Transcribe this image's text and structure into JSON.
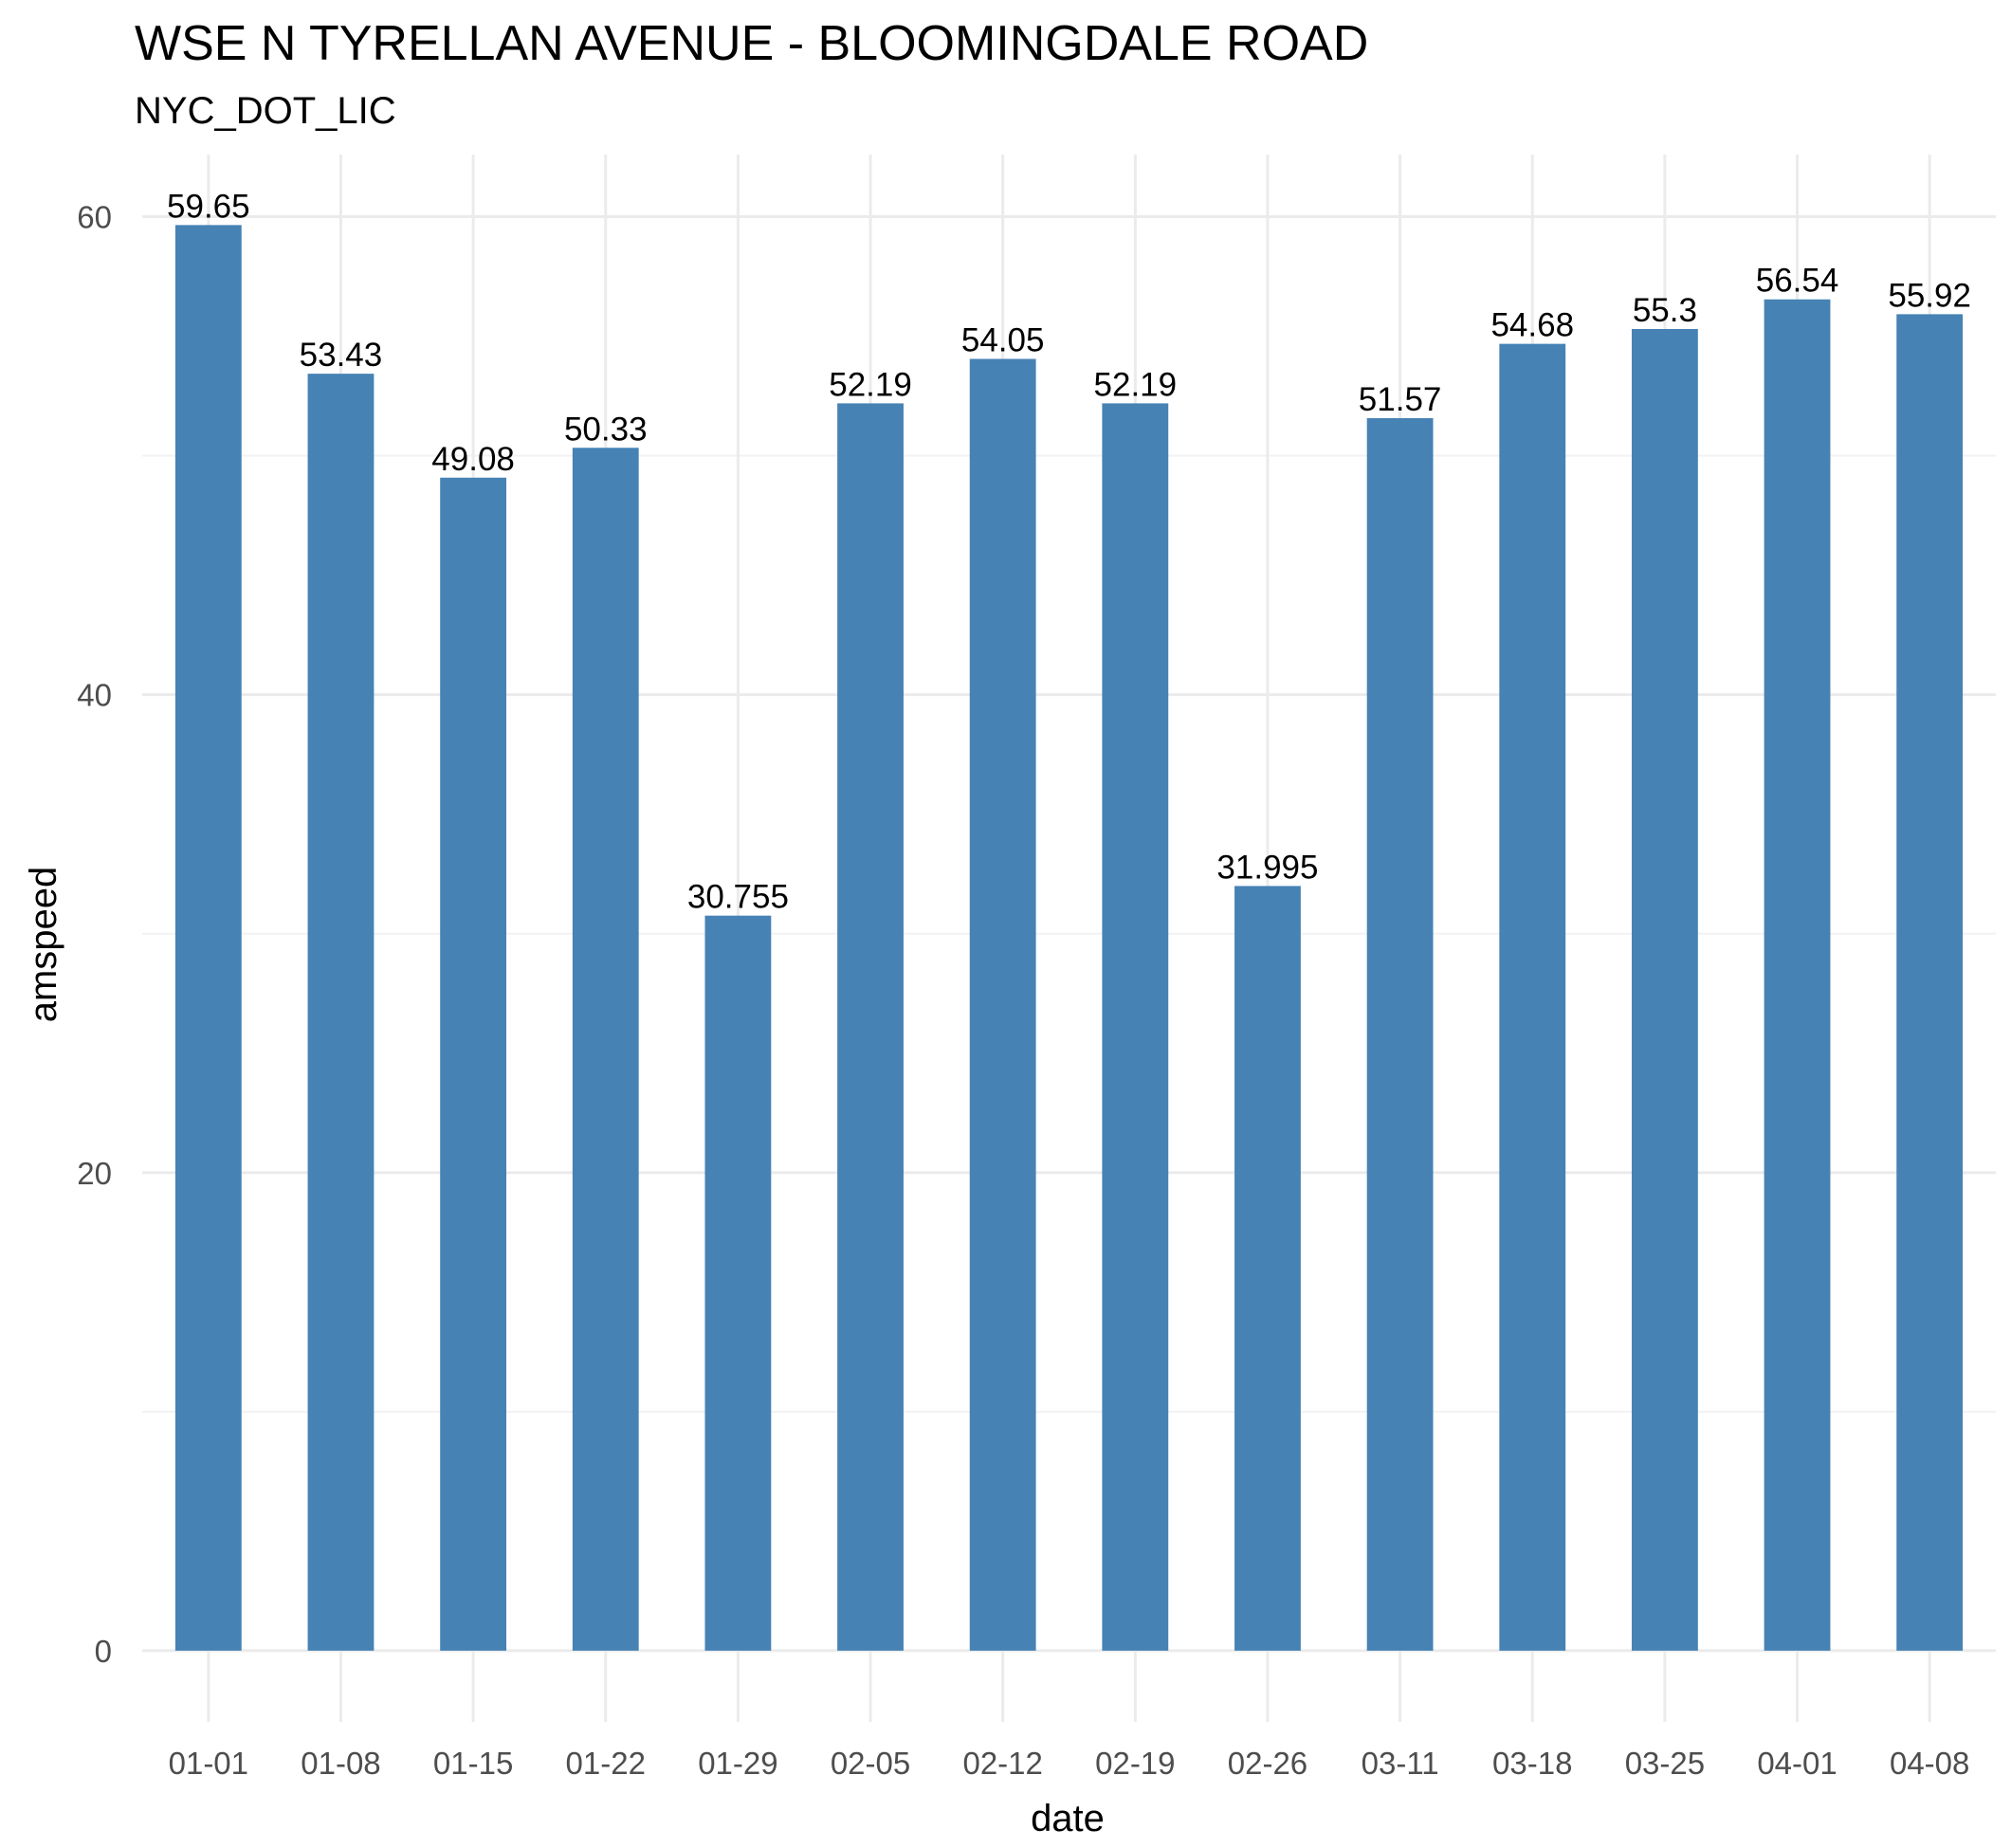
{
  "chart_data": {
    "type": "bar",
    "title": "WSE N TYRELLAN AVENUE - BLOOMINGDALE ROAD",
    "subtitle": "NYC_DOT_LIC",
    "xlabel": "date",
    "ylabel": "amspeed",
    "categories": [
      "01-01",
      "01-08",
      "01-15",
      "01-22",
      "01-29",
      "02-05",
      "02-12",
      "02-19",
      "02-26",
      "03-11",
      "03-18",
      "03-25",
      "04-01",
      "04-08"
    ],
    "values": [
      59.65,
      53.43,
      49.08,
      50.33,
      30.755,
      52.19,
      54.05,
      52.19,
      31.995,
      51.57,
      54.68,
      55.3,
      56.54,
      55.92
    ],
    "data_labels": [
      "59.65",
      "53.43",
      "49.08",
      "50.33",
      "30.755",
      "52.19",
      "54.05",
      "52.19",
      "31.995",
      "51.57",
      "54.68",
      "55.3",
      "56.54",
      "55.92"
    ],
    "yticks": [
      0,
      20,
      40,
      60
    ],
    "ylim": [
      -2.98,
      62.6
    ],
    "grid": true,
    "legend": "none",
    "bar_color": "#4682B4"
  }
}
